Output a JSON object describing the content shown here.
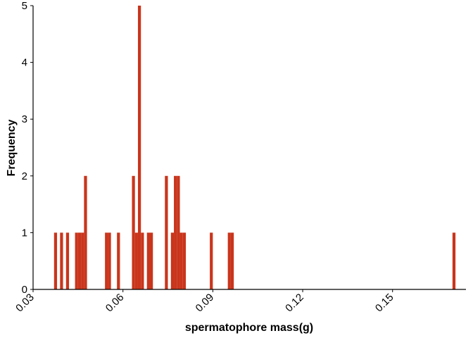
{
  "chart_data": {
    "type": "bar",
    "title": "",
    "xlabel": "spermatophore mass(g)",
    "ylabel": "Frequency",
    "xlim": [
      0.03,
      0.1745
    ],
    "ylim": [
      0,
      5
    ],
    "xticks": [
      {
        "value": 0.03,
        "label": "0.03"
      },
      {
        "value": 0.06,
        "label": "0.06"
      },
      {
        "value": 0.09,
        "label": "0.09"
      },
      {
        "value": 0.12,
        "label": "0.12"
      },
      {
        "value": 0.15,
        "label": "0.15"
      }
    ],
    "yticks": [
      {
        "value": 0,
        "label": "0"
      },
      {
        "value": 1,
        "label": "1"
      },
      {
        "value": 2,
        "label": "2"
      },
      {
        "value": 3,
        "label": "3"
      },
      {
        "value": 4,
        "label": "4"
      },
      {
        "value": 5,
        "label": "5"
      }
    ],
    "bin_width": 0.001,
    "grid": false,
    "bar_color": "#c9351c",
    "bins": [
      {
        "x": 0.0375,
        "count": 1
      },
      {
        "x": 0.0395,
        "count": 1
      },
      {
        "x": 0.0415,
        "count": 1
      },
      {
        "x": 0.0445,
        "count": 1
      },
      {
        "x": 0.0455,
        "count": 1
      },
      {
        "x": 0.0465,
        "count": 1
      },
      {
        "x": 0.0475,
        "count": 2
      },
      {
        "x": 0.0545,
        "count": 1
      },
      {
        "x": 0.0555,
        "count": 1
      },
      {
        "x": 0.0585,
        "count": 1
      },
      {
        "x": 0.0635,
        "count": 2
      },
      {
        "x": 0.0645,
        "count": 1
      },
      {
        "x": 0.0655,
        "count": 5
      },
      {
        "x": 0.0665,
        "count": 1
      },
      {
        "x": 0.0685,
        "count": 1
      },
      {
        "x": 0.0695,
        "count": 1
      },
      {
        "x": 0.0745,
        "count": 2
      },
      {
        "x": 0.0765,
        "count": 1
      },
      {
        "x": 0.0775,
        "count": 2
      },
      {
        "x": 0.0785,
        "count": 2
      },
      {
        "x": 0.0795,
        "count": 1
      },
      {
        "x": 0.0805,
        "count": 1
      },
      {
        "x": 0.0895,
        "count": 1
      },
      {
        "x": 0.0955,
        "count": 1
      },
      {
        "x": 0.0965,
        "count": 1
      },
      {
        "x": 0.1705,
        "count": 1
      }
    ]
  }
}
